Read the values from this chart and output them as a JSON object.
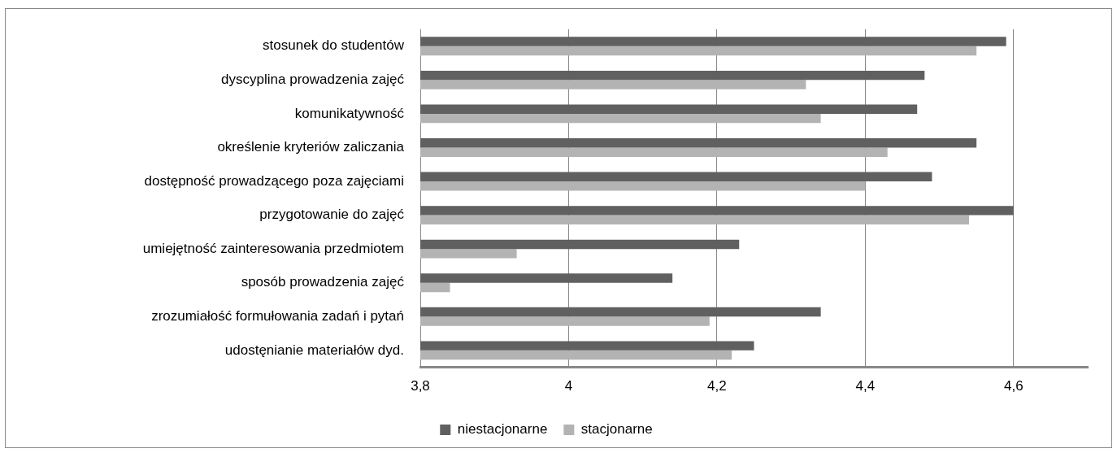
{
  "chart_data": {
    "type": "bar",
    "orientation": "horizontal",
    "categories": [
      "stosunek do studentów",
      "dyscyplina prowadzenia zajęć",
      "komunikatywność",
      "określenie kryteriów zaliczania",
      "dostępność prowadzącego poza zajęciami",
      "przygotowanie do zajęć",
      "umiejętność zainteresowania przedmiotem",
      "sposób prowadzenia zajęć",
      "zrozumiałość formułowania zadań i pytań",
      "udostęnianie materiałów dyd."
    ],
    "series": [
      {
        "name": "niestacjonarne",
        "color": "#606060",
        "values": [
          4.59,
          4.48,
          4.47,
          4.55,
          4.49,
          4.6,
          4.23,
          4.14,
          4.34,
          4.25
        ]
      },
      {
        "name": "stacjonarne",
        "color": "#b3b3b3",
        "values": [
          4.55,
          4.32,
          4.34,
          4.43,
          4.4,
          4.54,
          3.93,
          3.84,
          4.19,
          4.22
        ]
      }
    ],
    "xlim": [
      3.8,
      4.7
    ],
    "xticks": [
      {
        "value": 3.8,
        "label": "3,8"
      },
      4,
      {
        "value": 4.2,
        "label": "4,2"
      },
      {
        "value": 4.4,
        "label": "4,4"
      },
      {
        "value": 4.6,
        "label": "4,6"
      }
    ],
    "grid": "x",
    "legend": "bottom"
  }
}
